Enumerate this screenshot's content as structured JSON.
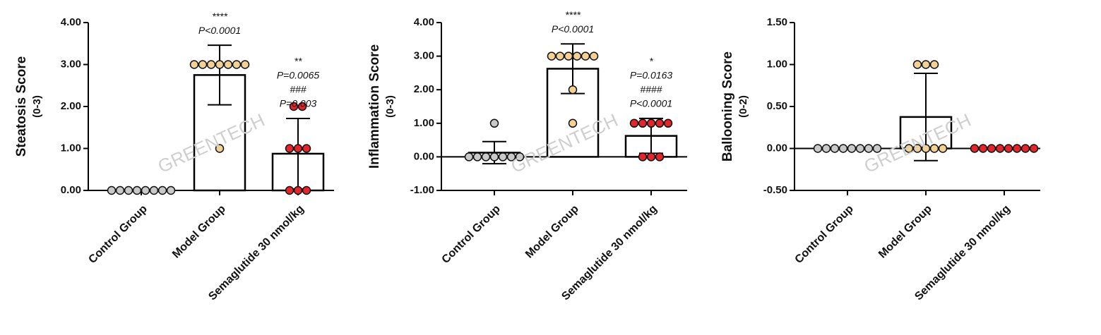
{
  "watermark": "GREENTECH",
  "chart_data": [
    {
      "type": "bar",
      "ylabel": "Steatosis Score",
      "ylabel_sub": "(0-3)",
      "categories": [
        "Control Group",
        "Model Group",
        "Semaglutide 30 nmol/kg"
      ],
      "colors": [
        "#c9c9c9",
        "#f3d194",
        "#e3262b"
      ],
      "values": [
        0,
        2.75,
        0.875
      ],
      "errors": [
        0,
        0.71,
        0.84
      ],
      "points": [
        [
          0,
          0,
          0,
          0,
          0,
          0,
          0,
          0
        ],
        [
          3,
          3,
          3,
          3,
          3,
          3,
          3,
          1
        ],
        [
          2,
          2,
          1,
          1,
          1,
          0,
          0,
          0
        ]
      ],
      "annotations": [
        null,
        [
          "****",
          "P<0.0001"
        ],
        [
          "**",
          "P=0.0065",
          "###",
          "P=0.003"
        ]
      ],
      "ylim": [
        0,
        4
      ],
      "yticks": [
        {
          "value": 0,
          "label": "0.00"
        },
        {
          "value": 1,
          "label": "1.00"
        },
        {
          "value": 2,
          "label": "2.00"
        },
        {
          "value": 3,
          "label": "3.00"
        },
        {
          "value": 4,
          "label": "4.00"
        }
      ]
    },
    {
      "type": "bar",
      "ylabel": "Inflammation Score",
      "ylabel_sub": "(0-3)",
      "categories": [
        "Control Group",
        "Model Group",
        "Semaglutide 30 nmol/kg"
      ],
      "colors": [
        "#c9c9c9",
        "#f3d194",
        "#e3262b"
      ],
      "values": [
        0.125,
        2.625,
        0.625
      ],
      "errors": [
        0.33,
        0.74,
        0.52
      ],
      "points": [
        [
          1,
          0,
          0,
          0,
          0,
          0,
          0,
          0
        ],
        [
          3,
          3,
          3,
          3,
          3,
          3,
          2,
          1
        ],
        [
          1,
          1,
          1,
          1,
          1,
          0,
          0,
          0
        ]
      ],
      "annotations": [
        null,
        [
          "****",
          "P<0.0001"
        ],
        [
          "*",
          "P=0.0163",
          "####",
          "P<0.0001"
        ]
      ],
      "ylim": [
        -1,
        4
      ],
      "yticks": [
        {
          "value": -1,
          "label": "-1.00"
        },
        {
          "value": 0,
          "label": "0.00"
        },
        {
          "value": 1,
          "label": "1.00"
        },
        {
          "value": 2,
          "label": "2.00"
        },
        {
          "value": 3,
          "label": "3.00"
        },
        {
          "value": 4,
          "label": "4.00"
        }
      ]
    },
    {
      "type": "bar",
      "ylabel": "Ballooning Score",
      "ylabel_sub": "(0-2)",
      "categories": [
        "Control Group",
        "Model Group",
        "Semaglutide 30 nmol/kg"
      ],
      "colors": [
        "#c9c9c9",
        "#f3d194",
        "#e3262b"
      ],
      "values": [
        0,
        0.375,
        0
      ],
      "errors": [
        0,
        0.52,
        0
      ],
      "points": [
        [
          0,
          0,
          0,
          0,
          0,
          0,
          0,
          0
        ],
        [
          1,
          1,
          1,
          0,
          0,
          0,
          0,
          0
        ],
        [
          0,
          0,
          0,
          0,
          0,
          0,
          0,
          0
        ]
      ],
      "annotations": [
        null,
        null,
        null
      ],
      "ylim": [
        -0.5,
        1.5
      ],
      "yticks": [
        {
          "value": -0.5,
          "label": "-0.50"
        },
        {
          "value": 0,
          "label": "0.00"
        },
        {
          "value": 0.5,
          "label": "0.50"
        },
        {
          "value": 1,
          "label": "1.00"
        },
        {
          "value": 1.5,
          "label": "1.50"
        }
      ]
    }
  ]
}
